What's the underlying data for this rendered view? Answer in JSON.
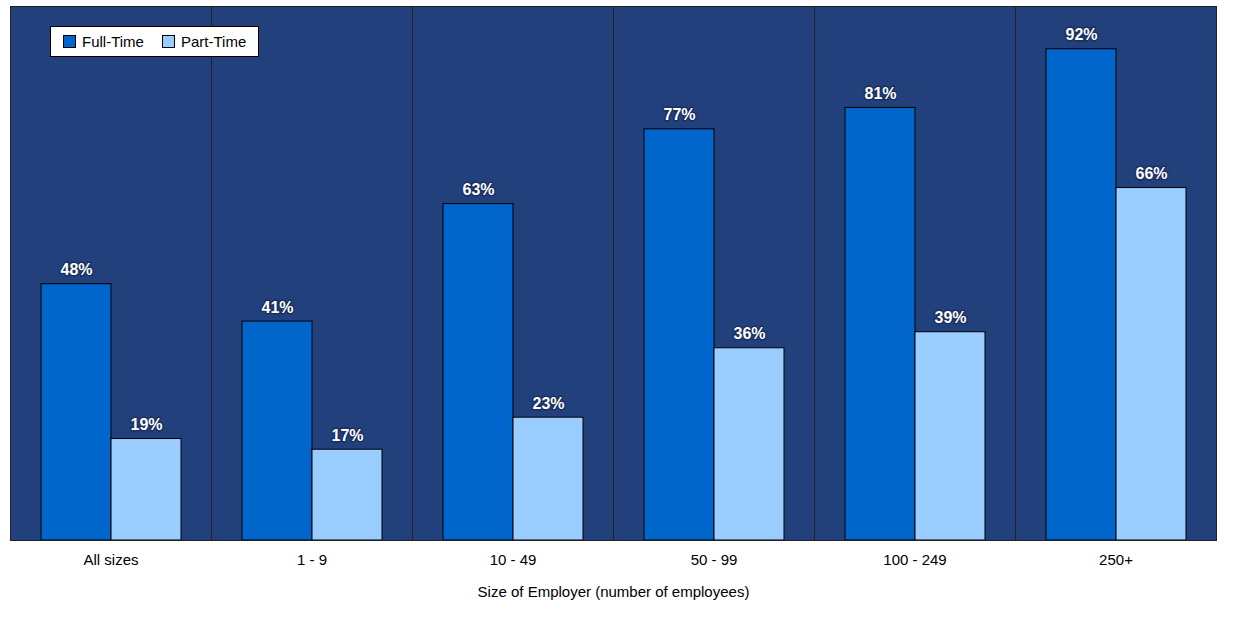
{
  "chart_data": {
    "type": "bar",
    "xlabel": "Size of Employer (number of employees)",
    "categories": [
      "All sizes",
      "1 - 9",
      "10 - 49",
      "50 - 99",
      "100 - 249",
      "250+"
    ],
    "series": [
      {
        "name": "Full-Time",
        "color": "#0066cc",
        "values": [
          48,
          41,
          63,
          77,
          81,
          92
        ],
        "value_labels": [
          "48%",
          "41%",
          "63%",
          "77%",
          "81%",
          "92%"
        ]
      },
      {
        "name": "Part-Time",
        "color": "#99ccff",
        "values": [
          19,
          17,
          23,
          36,
          39,
          66
        ],
        "value_labels": [
          "19%",
          "17%",
          "23%",
          "36%",
          "39%",
          "66%"
        ]
      }
    ],
    "ylim": [
      0,
      100
    ],
    "yticks": [],
    "tick_labels": "x",
    "data_labels": true,
    "legend": "top-left",
    "grid": false
  }
}
